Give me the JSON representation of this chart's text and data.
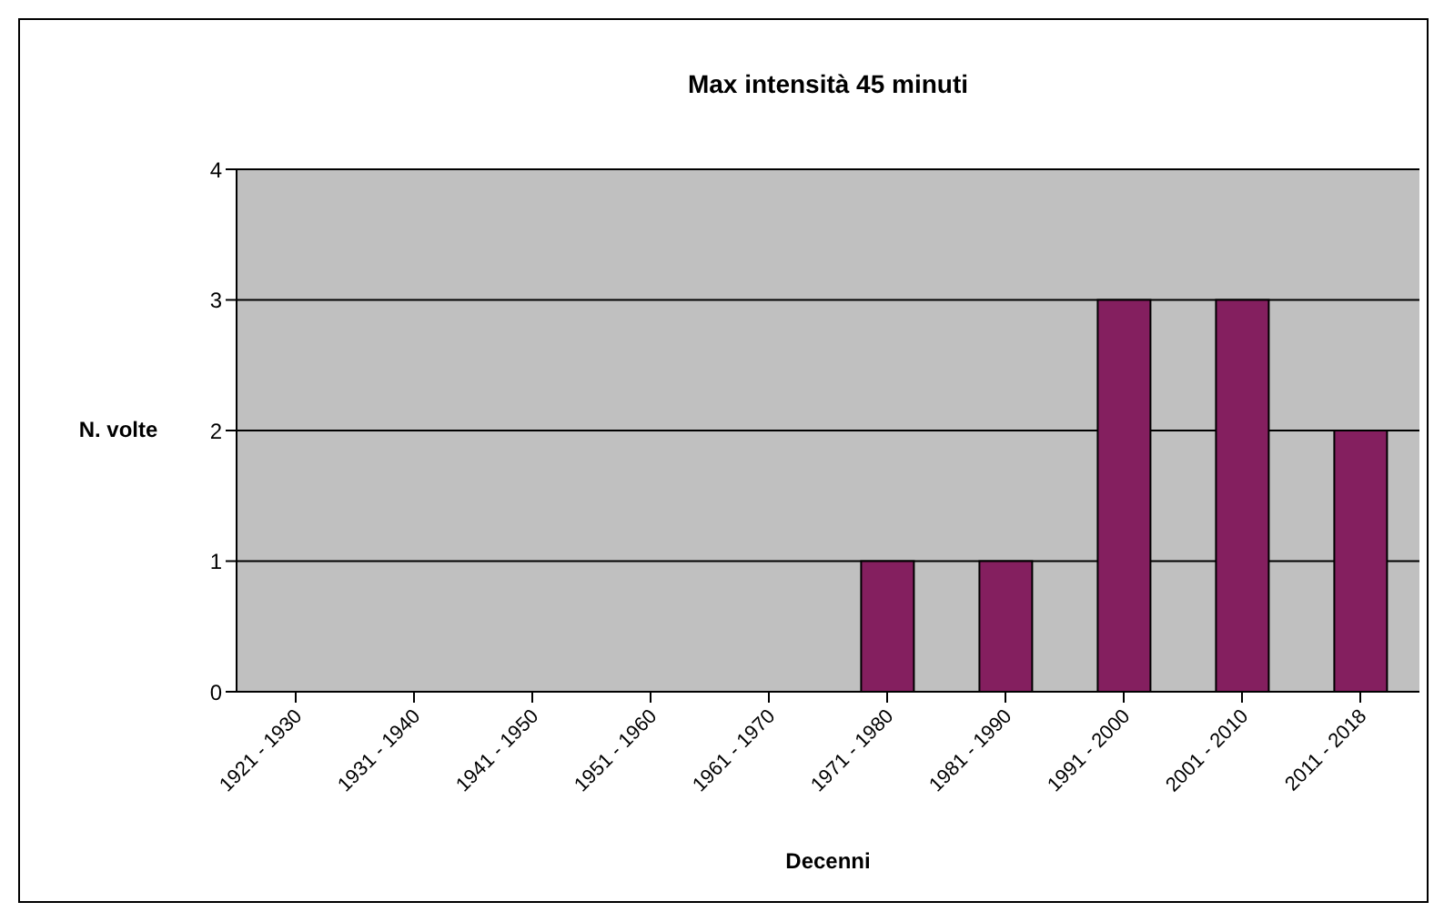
{
  "chart_data": {
    "type": "bar",
    "title": "Max intensità 45 minuti",
    "xlabel": "Decenni",
    "ylabel": "N. volte",
    "categories": [
      "1921 - 1930",
      "1931 - 1940",
      "1941 - 1950",
      "1951 - 1960",
      "1961 - 1970",
      "1971 - 1980",
      "1981 - 1990",
      "1991 - 2000",
      "2001 - 2010",
      "2011 - 2018"
    ],
    "values": [
      0,
      0,
      0,
      0,
      0,
      1,
      1,
      3,
      3,
      2
    ],
    "color": "#841f5f",
    "ylim": [
      0,
      4
    ],
    "yticks": [
      0,
      1,
      2,
      3,
      4
    ],
    "grid": "y",
    "legend": false
  }
}
